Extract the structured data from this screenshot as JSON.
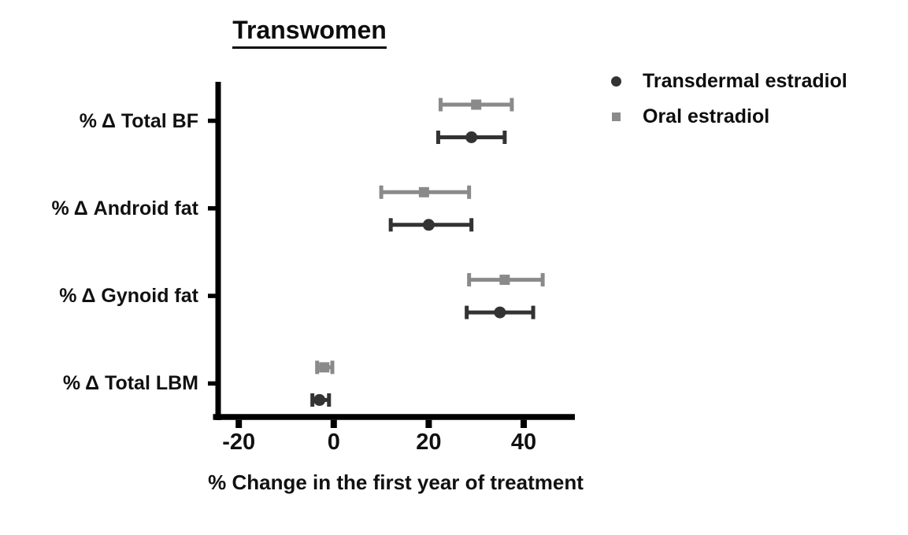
{
  "chart_data": {
    "type": "scatter",
    "subtype": "horizontal-point-estimates-with-error-bars",
    "title": "Transwomen",
    "xlabel": "% Change in the first year of treatment",
    "ylabel": "",
    "categories": [
      "% Δ Total BF",
      "% Δ Android fat",
      "% Δ Gynoid fat",
      "% Δ Total LBM"
    ],
    "series": [
      {
        "name": "Transdermal estradiol",
        "marker": "circle",
        "color": "#333333",
        "values": [
          29,
          20,
          35,
          -3
        ],
        "ci_low": [
          22,
          12,
          28,
          -4.5
        ],
        "ci_high": [
          36,
          29,
          42,
          -1
        ]
      },
      {
        "name": "Oral estradiol",
        "marker": "square",
        "color": "#8a8a8a",
        "values": [
          30,
          19,
          36,
          -2
        ],
        "ci_low": [
          22.5,
          10,
          28.5,
          -3.5
        ],
        "ci_high": [
          37.5,
          28.5,
          44,
          -0.3
        ]
      }
    ],
    "x_ticks": [
      -20,
      0,
      20,
      40
    ],
    "xlim": [
      -24.5,
      51
    ],
    "grid": false,
    "legend_position": "top-right",
    "axis_color": "#000000"
  }
}
